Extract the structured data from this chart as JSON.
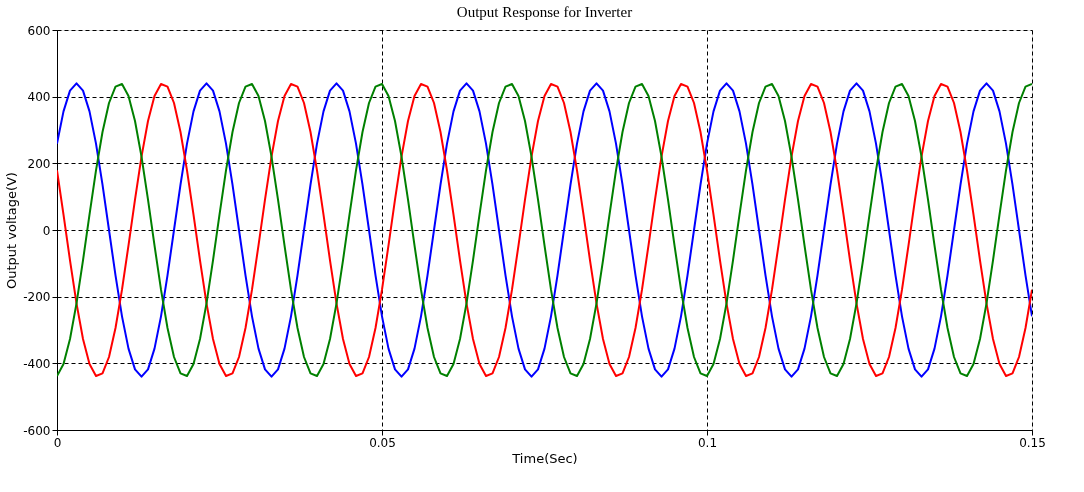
{
  "chart_data": {
    "type": "line",
    "title": "Output Response for Inverter",
    "xlabel": "Time(Sec)",
    "ylabel": "Output voltage(V)",
    "x": [
      0,
      0.001,
      0.002,
      0.003,
      0.004,
      0.005,
      0.006,
      0.007,
      0.008,
      0.009,
      0.01,
      0.011,
      0.012,
      0.013,
      0.014,
      0.015,
      0.016,
      0.017,
      0.018,
      0.019,
      0.02,
      0.021,
      0.022,
      0.023,
      0.024,
      0.025,
      0.026,
      0.027,
      0.028,
      0.029,
      0.03,
      0.031,
      0.032,
      0.033,
      0.034,
      0.035,
      0.036,
      0.037,
      0.038,
      0.039,
      0.04,
      0.041,
      0.042,
      0.043,
      0.044,
      0.045,
      0.046,
      0.047,
      0.048,
      0.049,
      0.05,
      0.051,
      0.052,
      0.053,
      0.054,
      0.055,
      0.056,
      0.057,
      0.058,
      0.059,
      0.06,
      0.061,
      0.062,
      0.063,
      0.064,
      0.065,
      0.066,
      0.067,
      0.068,
      0.069,
      0.07,
      0.071,
      0.072,
      0.073,
      0.074,
      0.075,
      0.076,
      0.077,
      0.078,
      0.079,
      0.08,
      0.081,
      0.082,
      0.083,
      0.084,
      0.085,
      0.086,
      0.087,
      0.088,
      0.089,
      0.09,
      0.091,
      0.092,
      0.093,
      0.094,
      0.095,
      0.096,
      0.097,
      0.098,
      0.099,
      0.1,
      0.101,
      0.102,
      0.103,
      0.104,
      0.105,
      0.106,
      0.107,
      0.108,
      0.109,
      0.11,
      0.111,
      0.112,
      0.113,
      0.114,
      0.115,
      0.116,
      0.117,
      0.118,
      0.119,
      0.12,
      0.121,
      0.122,
      0.123,
      0.124,
      0.125,
      0.126,
      0.127,
      0.128,
      0.129,
      0.13,
      0.131,
      0.132,
      0.133,
      0.134,
      0.135,
      0.136,
      0.137,
      0.138,
      0.139,
      0.14,
      0.141,
      0.142,
      0.143,
      0.144,
      0.145,
      0.146,
      0.147,
      0.148,
      0.149,
      0.15
    ],
    "series": [
      {
        "color": "#0000ff",
        "values": [
          259,
          356,
          418,
          440,
          418,
          356,
          259,
          136,
          0,
          -136,
          -259,
          -356,
          -418,
          -440,
          -418,
          -356,
          -259,
          -136,
          0,
          136,
          259,
          356,
          418,
          440,
          418,
          356,
          259,
          136,
          0,
          -136,
          -259,
          -356,
          -418,
          -440,
          -418,
          -356,
          -259,
          -136,
          0,
          136,
          259,
          356,
          418,
          440,
          418,
          356,
          259,
          136,
          0,
          -136,
          -259,
          -356,
          -418,
          -440,
          -418,
          -356,
          -259,
          -136,
          0,
          136,
          259,
          356,
          418,
          440,
          418,
          356,
          259,
          136,
          0,
          -136,
          -259,
          -356,
          -418,
          -440,
          -418,
          -356,
          -259,
          -136,
          0,
          136,
          259,
          356,
          418,
          440,
          418,
          356,
          259,
          136,
          0,
          -136,
          -259,
          -356,
          -418,
          -440,
          -418,
          -356,
          -259,
          -136,
          0,
          136,
          259,
          356,
          418,
          440,
          418,
          356,
          259,
          136,
          0,
          -136,
          -259,
          -356,
          -418,
          -440,
          -418,
          -356,
          -259,
          -136,
          0,
          136,
          259,
          356,
          418,
          440,
          418,
          356,
          259,
          136,
          0,
          -136,
          -259,
          -356,
          -418,
          -440,
          -418,
          -356,
          -259,
          -136,
          0,
          136,
          259,
          356,
          418,
          440,
          418,
          356,
          259,
          136,
          0,
          -136,
          -259
        ]
      },
      {
        "color": "#ff0000",
        "values": [
          179,
          46,
          -91,
          -220,
          -327,
          -402,
          -438,
          -430,
          -381,
          -294,
          -179,
          -46,
          91,
          220,
          327,
          402,
          438,
          430,
          381,
          294,
          179,
          46,
          -91,
          -220,
          -327,
          -402,
          -438,
          -430,
          -381,
          -294,
          -179,
          -46,
          91,
          220,
          327,
          402,
          438,
          430,
          381,
          294,
          179,
          46,
          -91,
          -220,
          -327,
          -402,
          -438,
          -430,
          -381,
          -294,
          -179,
          -46,
          91,
          220,
          327,
          402,
          438,
          430,
          381,
          294,
          179,
          46,
          -91,
          -220,
          -327,
          -402,
          -438,
          -430,
          -381,
          -294,
          -179,
          -46,
          91,
          220,
          327,
          402,
          438,
          430,
          381,
          294,
          179,
          46,
          -91,
          -220,
          -327,
          -402,
          -438,
          -430,
          -381,
          -294,
          -179,
          -46,
          91,
          220,
          327,
          402,
          438,
          430,
          381,
          294,
          179,
          46,
          -91,
          -220,
          -327,
          -402,
          -438,
          -430,
          -381,
          -294,
          -179,
          -46,
          91,
          220,
          327,
          402,
          438,
          430,
          381,
          294,
          179,
          46,
          -91,
          -220,
          -327,
          -402,
          -438,
          -430,
          -381,
          -294,
          -179,
          -46,
          91,
          220,
          327,
          402,
          438,
          430,
          381,
          294,
          179,
          46,
          -91,
          -220,
          -327,
          -402,
          -438,
          -430,
          -381,
          -294,
          -179
        ]
      },
      {
        "color": "#008000",
        "values": [
          -438,
          -402,
          -327,
          -220,
          -91,
          46,
          179,
          294,
          381,
          430,
          438,
          402,
          327,
          220,
          91,
          -46,
          -179,
          -294,
          -381,
          -430,
          -438,
          -402,
          -327,
          -220,
          -91,
          46,
          179,
          294,
          381,
          430,
          438,
          402,
          327,
          220,
          91,
          -46,
          -179,
          -294,
          -381,
          -430,
          -438,
          -402,
          -327,
          -220,
          -91,
          46,
          179,
          294,
          381,
          430,
          438,
          402,
          327,
          220,
          91,
          -46,
          -179,
          -294,
          -381,
          -430,
          -438,
          -402,
          -327,
          -220,
          -91,
          46,
          179,
          294,
          381,
          430,
          438,
          402,
          327,
          220,
          91,
          -46,
          -179,
          -294,
          -381,
          -430,
          -438,
          -402,
          -327,
          -220,
          -91,
          46,
          179,
          294,
          381,
          430,
          438,
          402,
          327,
          220,
          91,
          -46,
          -179,
          -294,
          -381,
          -430,
          -438,
          -402,
          -327,
          -220,
          -91,
          46,
          179,
          294,
          381,
          430,
          438,
          402,
          327,
          220,
          91,
          -46,
          -179,
          -294,
          -381,
          -430,
          -438,
          -402,
          -327,
          -220,
          -91,
          46,
          179,
          294,
          381,
          430,
          438,
          402,
          327,
          220,
          91,
          -46,
          -179,
          -294,
          -381,
          -430,
          -438,
          -402,
          -327,
          -220,
          -91,
          46,
          179,
          294,
          381,
          430,
          438
        ]
      }
    ],
    "xlim": [
      0,
      0.15
    ],
    "xticks": [
      0,
      0.05,
      0.1,
      0.15
    ],
    "ylim": [
      -600,
      600
    ],
    "yticks": [
      -600,
      -400,
      -200,
      0,
      200,
      400,
      600
    ],
    "grid": true,
    "legend": false,
    "marker": "none",
    "line_style": "solid"
  }
}
